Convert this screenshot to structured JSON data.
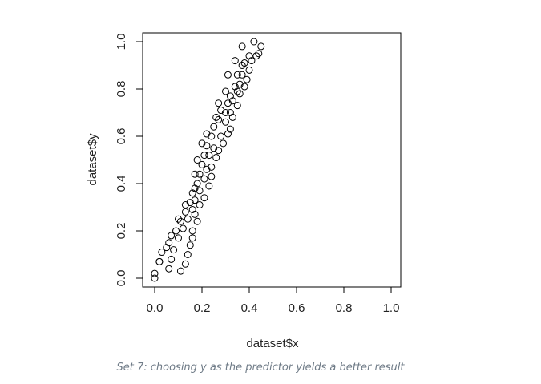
{
  "chart_data": {
    "type": "scatter",
    "title": "",
    "xlabel": "dataset$x",
    "ylabel": "dataset$y",
    "xlim": [
      0,
      1
    ],
    "ylim": [
      0,
      1
    ],
    "x_ticks": [
      "0.0",
      "0.2",
      "0.4",
      "0.6",
      "0.8",
      "1.0"
    ],
    "y_ticks": [
      "0.0",
      "0.2",
      "0.4",
      "0.6",
      "0.8",
      "1.0"
    ],
    "grid": false,
    "marker": "open-circle",
    "points": [
      [
        0.0,
        0.02
      ],
      [
        0.0,
        0.0
      ],
      [
        0.02,
        0.07
      ],
      [
        0.02,
        0.07
      ],
      [
        0.03,
        0.11
      ],
      [
        0.05,
        0.13
      ],
      [
        0.06,
        0.15
      ],
      [
        0.06,
        0.04
      ],
      [
        0.07,
        0.08
      ],
      [
        0.07,
        0.18
      ],
      [
        0.08,
        0.12
      ],
      [
        0.09,
        0.2
      ],
      [
        0.1,
        0.17
      ],
      [
        0.1,
        0.25
      ],
      [
        0.11,
        0.24
      ],
      [
        0.11,
        0.03
      ],
      [
        0.12,
        0.21
      ],
      [
        0.13,
        0.28
      ],
      [
        0.13,
        0.31
      ],
      [
        0.13,
        0.06
      ],
      [
        0.14,
        0.1
      ],
      [
        0.14,
        0.25
      ],
      [
        0.15,
        0.32
      ],
      [
        0.15,
        0.14
      ],
      [
        0.16,
        0.36
      ],
      [
        0.16,
        0.29
      ],
      [
        0.16,
        0.2
      ],
      [
        0.16,
        0.17
      ],
      [
        0.17,
        0.38
      ],
      [
        0.17,
        0.44
      ],
      [
        0.17,
        0.27
      ],
      [
        0.17,
        0.33
      ],
      [
        0.18,
        0.4
      ],
      [
        0.18,
        0.5
      ],
      [
        0.18,
        0.24
      ],
      [
        0.19,
        0.37
      ],
      [
        0.19,
        0.31
      ],
      [
        0.19,
        0.44
      ],
      [
        0.2,
        0.48
      ],
      [
        0.2,
        0.57
      ],
      [
        0.21,
        0.42
      ],
      [
        0.21,
        0.52
      ],
      [
        0.21,
        0.34
      ],
      [
        0.22,
        0.46
      ],
      [
        0.22,
        0.56
      ],
      [
        0.22,
        0.61
      ],
      [
        0.23,
        0.39
      ],
      [
        0.23,
        0.52
      ],
      [
        0.24,
        0.6
      ],
      [
        0.24,
        0.43
      ],
      [
        0.24,
        0.47
      ],
      [
        0.25,
        0.64
      ],
      [
        0.25,
        0.55
      ],
      [
        0.26,
        0.68
      ],
      [
        0.26,
        0.51
      ],
      [
        0.27,
        0.67
      ],
      [
        0.27,
        0.54
      ],
      [
        0.27,
        0.74
      ],
      [
        0.28,
        0.6
      ],
      [
        0.28,
        0.71
      ],
      [
        0.29,
        0.57
      ],
      [
        0.3,
        0.7
      ],
      [
        0.3,
        0.79
      ],
      [
        0.3,
        0.66
      ],
      [
        0.31,
        0.74
      ],
      [
        0.31,
        0.86
      ],
      [
        0.31,
        0.61
      ],
      [
        0.32,
        0.63
      ],
      [
        0.32,
        0.77
      ],
      [
        0.32,
        0.7
      ],
      [
        0.33,
        0.68
      ],
      [
        0.33,
        0.75
      ],
      [
        0.34,
        0.81
      ],
      [
        0.34,
        0.92
      ],
      [
        0.35,
        0.73
      ],
      [
        0.35,
        0.79
      ],
      [
        0.35,
        0.86
      ],
      [
        0.36,
        0.78
      ],
      [
        0.36,
        0.82
      ],
      [
        0.37,
        0.9
      ],
      [
        0.37,
        0.98
      ],
      [
        0.37,
        0.86
      ],
      [
        0.38,
        0.81
      ],
      [
        0.38,
        0.91
      ],
      [
        0.39,
        0.84
      ],
      [
        0.4,
        0.94
      ],
      [
        0.4,
        0.88
      ],
      [
        0.41,
        0.92
      ],
      [
        0.42,
        1.0
      ],
      [
        0.43,
        0.94
      ],
      [
        0.44,
        0.95
      ],
      [
        0.45,
        0.98
      ]
    ]
  },
  "caption": "Set 7: choosing y as the predictor yields a better result"
}
